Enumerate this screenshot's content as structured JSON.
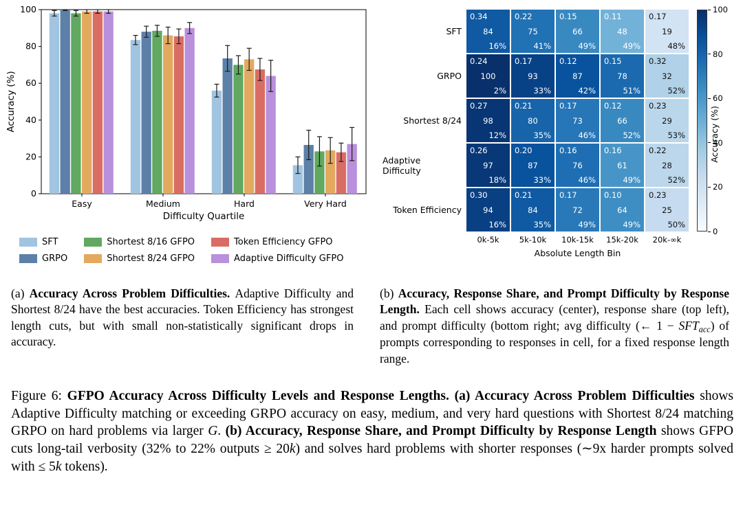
{
  "figure": {
    "number_label": "Figure 6:",
    "subfig_a_label": "(a)",
    "subfig_b_label": "(b)"
  },
  "chart_data": [
    {
      "type": "bar",
      "panel": "a",
      "title": "",
      "xlabel": "Difficulty Quartile",
      "ylabel": "Accuracy (%)",
      "ylim": [
        0,
        100
      ],
      "yticks": [
        0,
        20,
        40,
        60,
        80,
        100
      ],
      "grid": false,
      "legend_position": "below",
      "categories": [
        "Easy",
        "Medium",
        "Hard",
        "Very Hard"
      ],
      "series": [
        {
          "name": "SFT",
          "color": "#a1c4e0",
          "values": [
            98,
            83.5,
            56,
            15.5
          ],
          "errors": [
            1.5,
            2.5,
            3.5,
            4.5
          ]
        },
        {
          "name": "GRPO",
          "color": "#5c80a8",
          "values": [
            100,
            88,
            73.5,
            26.5
          ],
          "errors": [
            0.5,
            3,
            7,
            8
          ]
        },
        {
          "name": "Shortest 8/16 GFPO",
          "color": "#61a860",
          "values": [
            98,
            88.5,
            70,
            23
          ],
          "errors": [
            1.5,
            3,
            5,
            8
          ]
        },
        {
          "name": "Shortest 8/24 GFPO",
          "color": "#e2a95f",
          "values": [
            99,
            86,
            73,
            23.5
          ],
          "errors": [
            1,
            4.5,
            6,
            7
          ]
        },
        {
          "name": "Token Efficiency GFPO",
          "color": "#d96d64",
          "values": [
            99,
            85.5,
            67.5,
            22.5
          ],
          "errors": [
            1,
            4,
            6,
            5
          ]
        },
        {
          "name": "Adaptive Difficulty GFPO",
          "color": "#b990dc",
          "values": [
            99,
            90,
            64,
            27
          ],
          "errors": [
            1,
            3,
            8.5,
            9
          ]
        }
      ]
    },
    {
      "type": "heatmap",
      "panel": "b",
      "xlabel": "Absolute Length Bin",
      "colorbar_label": "Accuracy (%)",
      "colorbar_ticks": [
        0,
        20,
        40,
        60,
        80,
        100
      ],
      "colorbar_range": [
        0,
        100
      ],
      "text_threshold": 40,
      "rows": [
        "SFT",
        "GRPO",
        "Shortest 8/24",
        "Adaptive Difficulty",
        "Token Efficiency"
      ],
      "columns": [
        "0k-5k",
        "5k-10k",
        "10k-15k",
        "15k-20k",
        "20k-∞k"
      ],
      "cell_legend": {
        "top_left": "response share",
        "center": "accuracy",
        "bottom_right": "prompt difficulty"
      },
      "cells": [
        [
          {
            "share": "0.34",
            "acc": 84,
            "diff": "16%"
          },
          {
            "share": "0.22",
            "acc": 75,
            "diff": "41%"
          },
          {
            "share": "0.15",
            "acc": 66,
            "diff": "49%"
          },
          {
            "share": "0.11",
            "acc": 48,
            "diff": "49%"
          },
          {
            "share": "0.17",
            "acc": 19,
            "diff": "48%"
          }
        ],
        [
          {
            "share": "0.24",
            "acc": 100,
            "diff": "2%"
          },
          {
            "share": "0.17",
            "acc": 93,
            "diff": "33%"
          },
          {
            "share": "0.12",
            "acc": 87,
            "diff": "42%"
          },
          {
            "share": "0.15",
            "acc": 78,
            "diff": "51%"
          },
          {
            "share": "0.32",
            "acc": 32,
            "diff": "52%"
          }
        ],
        [
          {
            "share": "0.27",
            "acc": 98,
            "diff": "12%"
          },
          {
            "share": "0.21",
            "acc": 80,
            "diff": "35%"
          },
          {
            "share": "0.17",
            "acc": 73,
            "diff": "46%"
          },
          {
            "share": "0.12",
            "acc": 66,
            "diff": "52%"
          },
          {
            "share": "0.23",
            "acc": 29,
            "diff": "53%"
          }
        ],
        [
          {
            "share": "0.26",
            "acc": 97,
            "diff": "18%"
          },
          {
            "share": "0.20",
            "acc": 87,
            "diff": "33%"
          },
          {
            "share": "0.16",
            "acc": 76,
            "diff": "46%"
          },
          {
            "share": "0.16",
            "acc": 61,
            "diff": "49%"
          },
          {
            "share": "0.22",
            "acc": 28,
            "diff": "52%"
          }
        ],
        [
          {
            "share": "0.30",
            "acc": 94,
            "diff": "16%"
          },
          {
            "share": "0.21",
            "acc": 84,
            "diff": "35%"
          },
          {
            "share": "0.17",
            "acc": 72,
            "diff": "49%"
          },
          {
            "share": "0.10",
            "acc": 64,
            "diff": "49%"
          },
          {
            "share": "0.23",
            "acc": 25,
            "diff": "50%"
          }
        ]
      ],
      "colormap": [
        "#f7fbff",
        "#deebf7",
        "#c6dbef",
        "#9ecae1",
        "#6baed6",
        "#4292c6",
        "#2171b5",
        "#08519c",
        "#08306b"
      ]
    }
  ],
  "caption_a": {
    "segments": [
      {
        "t": "(a) ",
        "s": "r"
      },
      {
        "t": "Accuracy Across Problem Difficulties. ",
        "s": "b"
      },
      {
        "t": "Adaptive Difficulty and Shortest 8/24 have the best accuracies. Token Efficiency has strongest length cuts, but with small non-statistically significant drops in accuracy.",
        "s": "r"
      }
    ]
  },
  "caption_b": {
    "segments": [
      {
        "t": "(b) ",
        "s": "r"
      },
      {
        "t": "Accuracy, Response Share, and Prompt Difficulty by Response Length. ",
        "s": "b"
      },
      {
        "t": "Each cell shows accuracy (center), response share (top left), and prompt difficulty (bottom right; avg difficulty (← 1 − ",
        "s": "r"
      },
      {
        "t": "SFT",
        "s": "i"
      },
      {
        "t": "acc",
        "s": "sub"
      },
      {
        "t": ") of prompts corresponding to responses in cell, for a fixed response length range.",
        "s": "r"
      }
    ]
  },
  "figure_caption": {
    "segments": [
      {
        "t": "Figure 6: ",
        "s": "r"
      },
      {
        "t": "GFPO Accuracy Across Difficulty Levels and Response Lengths. (a) Accuracy Across Problem Difficulties ",
        "s": "b"
      },
      {
        "t": "shows Adaptive Difficulty matching or exceeding GRPO accuracy on easy, medium, and very hard questions with Shortest 8/24 matching GRPO on hard problems via larger ",
        "s": "r"
      },
      {
        "t": "G",
        "s": "i"
      },
      {
        "t": ". ",
        "s": "r"
      },
      {
        "t": "(b) Accuracy, Response Share, and Prompt Difficulty by Response Length ",
        "s": "b"
      },
      {
        "t": "shows GFPO cuts long-tail verbosity (32% to 22% outputs ≥ 20",
        "s": "r"
      },
      {
        "t": "k",
        "s": "i"
      },
      {
        "t": ") and solves hard problems with shorter responses (∼9x harder prompts solved with ≤ 5",
        "s": "r"
      },
      {
        "t": "k",
        "s": "i"
      },
      {
        "t": " tokens).",
        "s": "r"
      }
    ]
  }
}
